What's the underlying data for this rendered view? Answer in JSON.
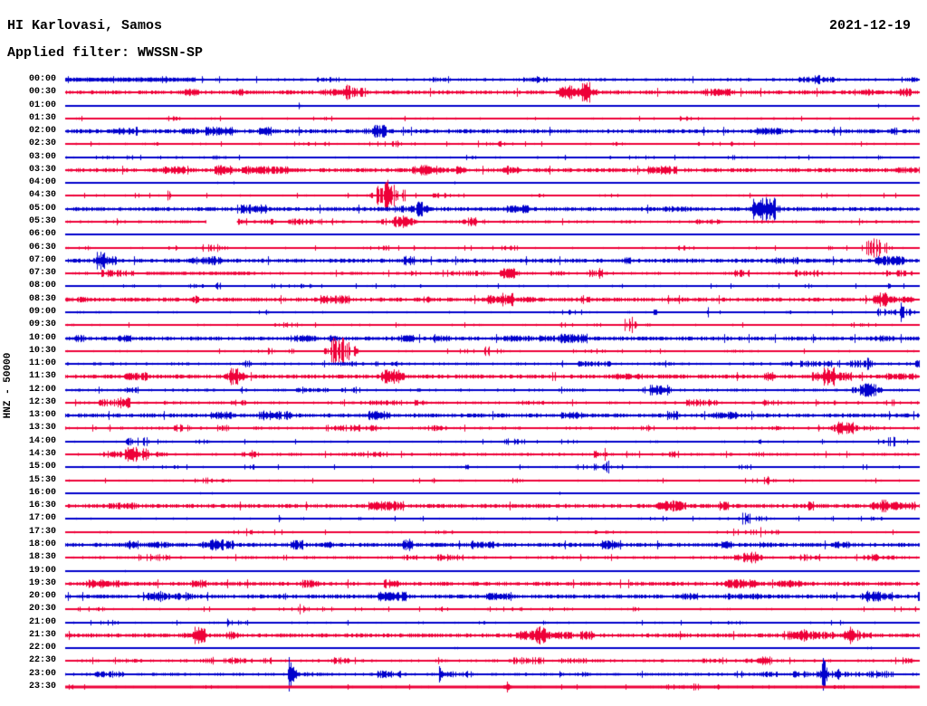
{
  "header": {
    "station": "HI Karlovasi, Samos",
    "date": "2021-12-19",
    "filter_label": "Applied filter: WWSSN-SP"
  },
  "left_axis": {
    "label": "HNZ - 50000"
  },
  "colors": {
    "blue": "#0000cc",
    "red": "#ee0038",
    "background": "#ffffff",
    "text": "#000000"
  },
  "chart_data": {
    "type": "line",
    "subtype": "helicorder-seismogram",
    "title": "HI Karlovasi, Samos",
    "date": "2021-12-19",
    "filter": "WWSSN-SP",
    "channel": "HNZ",
    "gain": "50000",
    "row_interval_minutes": 30,
    "minutes_per_row": 30,
    "legend": "alternating blue/red half-hour traces, times UTC on left",
    "rows": [
      {
        "time": "00:00",
        "color": "blue",
        "noise": 2,
        "segments": [
          {
            "from": 0.0,
            "to": 0.152,
            "amp": 2.4
          }
        ]
      },
      {
        "time": "00:30",
        "color": "red",
        "noise": 3
      },
      {
        "time": "01:00",
        "color": "blue",
        "noise": 0,
        "events": [
          {
            "x": 0.273,
            "amp": 3.5,
            "tau": 3,
            "coda": 8
          }
        ]
      },
      {
        "time": "01:30",
        "color": "red",
        "noise": 1
      },
      {
        "time": "02:00",
        "color": "blue",
        "noise": 3
      },
      {
        "time": "02:30",
        "color": "red",
        "noise": 1
      },
      {
        "time": "03:00",
        "color": "blue",
        "noise": 1
      },
      {
        "time": "03:30",
        "color": "red",
        "noise": 3
      },
      {
        "time": "04:00",
        "color": "blue",
        "noise": 0
      },
      {
        "time": "04:30",
        "color": "red",
        "noise": 1
      },
      {
        "time": "05:00",
        "color": "blue",
        "noise": 3
      },
      {
        "time": "05:30",
        "color": "red",
        "noise": 2,
        "gaps": [
          [
            0.165,
            0.201
          ]
        ]
      },
      {
        "time": "06:00",
        "color": "blue",
        "noise": 0
      },
      {
        "time": "06:30",
        "color": "red",
        "noise": 1
      },
      {
        "time": "07:00",
        "color": "blue",
        "noise": 3
      },
      {
        "time": "07:30",
        "color": "red",
        "noise": 2,
        "segments": [
          {
            "from": 0.093,
            "to": 0.22,
            "amp": 1.8
          }
        ]
      },
      {
        "time": "08:00",
        "color": "blue",
        "noise": 1
      },
      {
        "time": "08:30",
        "color": "red",
        "noise": 3
      },
      {
        "time": "09:00",
        "color": "blue",
        "noise": 1
      },
      {
        "time": "09:30",
        "color": "red",
        "noise": 1
      },
      {
        "time": "10:00",
        "color": "blue",
        "noise": 3
      },
      {
        "time": "10:30",
        "color": "red",
        "noise": 1
      },
      {
        "time": "11:00",
        "color": "blue",
        "noise": 2
      },
      {
        "time": "11:30",
        "color": "red",
        "noise": 3
      },
      {
        "time": "12:00",
        "color": "blue",
        "noise": 2
      },
      {
        "time": "12:30",
        "color": "red",
        "noise": 2
      },
      {
        "time": "13:00",
        "color": "blue",
        "noise": 3
      },
      {
        "time": "13:30",
        "color": "red",
        "noise": 2
      },
      {
        "time": "14:00",
        "color": "blue",
        "noise": 1
      },
      {
        "time": "14:30",
        "color": "red",
        "noise": 2,
        "events": [
          {
            "x": 0.631,
            "amp": 7,
            "tau": 2,
            "coda": 5
          }
        ]
      },
      {
        "time": "15:00",
        "color": "blue",
        "noise": 1
      },
      {
        "time": "15:30",
        "color": "red",
        "noise": 1
      },
      {
        "time": "16:00",
        "color": "blue",
        "noise": 0
      },
      {
        "time": "16:30",
        "color": "red",
        "noise": 3
      },
      {
        "time": "17:00",
        "color": "blue",
        "noise": 1,
        "events": [
          {
            "x": 0.25,
            "amp": 4,
            "tau": 2,
            "coda": 5
          }
        ]
      },
      {
        "time": "17:30",
        "color": "red",
        "noise": 1
      },
      {
        "time": "18:00",
        "color": "blue",
        "noise": 3
      },
      {
        "time": "18:30",
        "color": "red",
        "noise": 2
      },
      {
        "time": "19:00",
        "color": "blue",
        "noise": 0
      },
      {
        "time": "19:30",
        "color": "red",
        "noise": 3
      },
      {
        "time": "20:00",
        "color": "blue",
        "noise": 3
      },
      {
        "time": "20:30",
        "color": "red",
        "noise": 1
      },
      {
        "time": "21:00",
        "color": "blue",
        "noise": 1,
        "events": [
          {
            "x": 0.19,
            "amp": 4.5,
            "tau": 3,
            "coda": 10
          }
        ]
      },
      {
        "time": "21:30",
        "color": "red",
        "noise": 3
      },
      {
        "time": "22:00",
        "color": "blue",
        "noise": 0
      },
      {
        "time": "22:30",
        "color": "red",
        "noise": 2
      },
      {
        "time": "23:00",
        "color": "blue",
        "noise": 2,
        "events": [
          {
            "x": 0.262,
            "amp": 19,
            "tau": 6,
            "coda": 90
          },
          {
            "x": 0.437,
            "amp": 9,
            "tau": 5,
            "coda": 45
          },
          {
            "x": 0.578,
            "amp": 3.5,
            "tau": 4,
            "coda": 15
          },
          {
            "x": 0.82,
            "amp": 3,
            "tau": 3,
            "coda": 10
          }
        ]
      },
      {
        "time": "23:30",
        "color": "red",
        "noise": 1,
        "thick": 3,
        "events": [
          {
            "x": 0.517,
            "amp": 6,
            "tau": 4,
            "coda": 14,
            "ramp": 8
          }
        ]
      }
    ]
  }
}
